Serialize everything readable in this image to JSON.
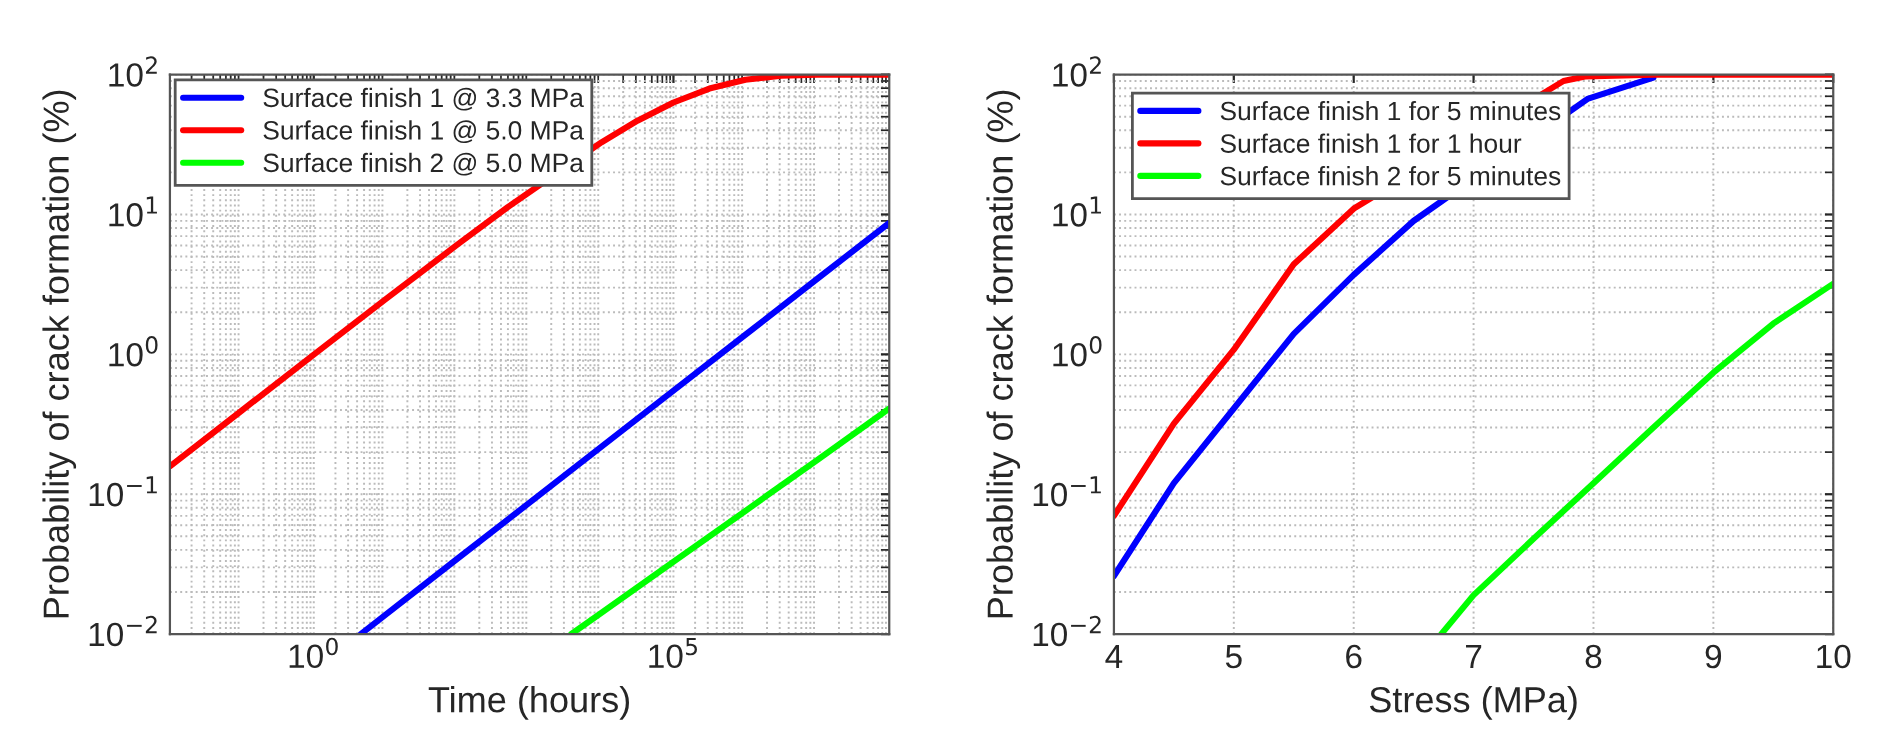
{
  "chart_data": [
    {
      "type": "line",
      "xlabel": "Time (hours)",
      "ylabel": "Probability of crack formation (%)",
      "log": "xy",
      "xlim": [
        0.01,
        100000000
      ],
      "xticks": [
        {
          "value": 1,
          "label": "10$^{0}$"
        },
        {
          "value": 100000,
          "label": "10$^{5}$"
        }
      ],
      "ylim": [
        0.01,
        100
      ],
      "yticks": [
        {
          "value": 0.01,
          "label": "10$^{−2}$"
        },
        {
          "value": 0.1,
          "label": "10$^{−1}$"
        },
        {
          "value": 1,
          "label": "10$^{0}$"
        },
        {
          "value": 10,
          "label": "10$^{1}$"
        },
        {
          "value": 100,
          "label": "10$^{2}$"
        }
      ],
      "grid": true,
      "legend": "top left",
      "line_style": "solid",
      "marker": "none",
      "series": [
        {
          "name": "Surface finish 1 @ 3.3 MPa",
          "color": "#0000ff",
          "x": [
            4.5,
            10,
            100,
            1000,
            10000,
            100000,
            1000000,
            10000000,
            100000000
          ],
          "values": [
            0.01,
            0.0138,
            0.0347,
            0.0871,
            0.219,
            0.55,
            1.38,
            3.47,
            8.7
          ]
        },
        {
          "name": "Surface finish 1 @ 5.0 MPa",
          "color": "#ff0000",
          "x": [
            0.01,
            0.1,
            1,
            10,
            100,
            500,
            10000,
            31623,
            100000,
            316228,
            1000000,
            3162278,
            10000000,
            100000000
          ],
          "values": [
            0.158,
            0.397,
            0.995,
            2.48,
            6.11,
            11.3,
            32.8,
            46.8,
            63.2,
            79.5,
            91.9,
            98.1,
            99.8,
            100
          ]
        },
        {
          "name": "Surface finish 2 @ 5.0 MPa",
          "color": "#00ff00",
          "x": [
            3800,
            10000,
            100000,
            1000000,
            10000000,
            100000000
          ],
          "values": [
            0.01,
            0.0142,
            0.0329,
            0.076,
            0.176,
            0.41
          ]
        }
      ]
    },
    {
      "type": "line",
      "xlabel": "Stress (MPa)",
      "ylabel": "Probability of crack formation (%)",
      "log": "y",
      "xlim": [
        4,
        10
      ],
      "xticks": [
        4,
        5,
        6,
        7,
        8,
        9,
        10
      ],
      "ylim": [
        0.01,
        100
      ],
      "yticks": [
        {
          "value": 0.01,
          "label": "10$^{−2}$"
        },
        {
          "value": 0.1,
          "label": "10$^{−1}$"
        },
        {
          "value": 1,
          "label": "10$^{0}$"
        },
        {
          "value": 10,
          "label": "10$^{1}$"
        },
        {
          "value": 100,
          "label": "10$^{2}$"
        }
      ],
      "grid": true,
      "legend": "top left",
      "line_style": "solid",
      "marker": "none",
      "series": [
        {
          "name": "Surface finish 1 for 5 minutes",
          "color": "#0000ff",
          "x": [
            4,
            4.5,
            5,
            5.5,
            6,
            6.5,
            7.95,
            8.5
          ],
          "values": [
            0.026,
            0.12,
            0.41,
            1.4,
            3.7,
            9,
            67,
            95
          ]
        },
        {
          "name": "Surface finish 1 for 1 hour",
          "color": "#ff0000",
          "x": [
            4,
            4.5,
            5,
            5.5,
            6,
            7.75,
            7.93,
            8.5,
            10
          ],
          "values": [
            0.07,
            0.32,
            1.08,
            4.4,
            11,
            90,
            97,
            100,
            100
          ]
        },
        {
          "name": "Surface finish 2 for 5 minutes",
          "color": "#00ff00",
          "x": [
            6.73,
            7,
            7.5,
            8,
            8.5,
            9,
            9.5,
            10
          ],
          "values": [
            0.01,
            0.019,
            0.048,
            0.12,
            0.3,
            0.74,
            1.66,
            3.2
          ]
        }
      ]
    }
  ]
}
